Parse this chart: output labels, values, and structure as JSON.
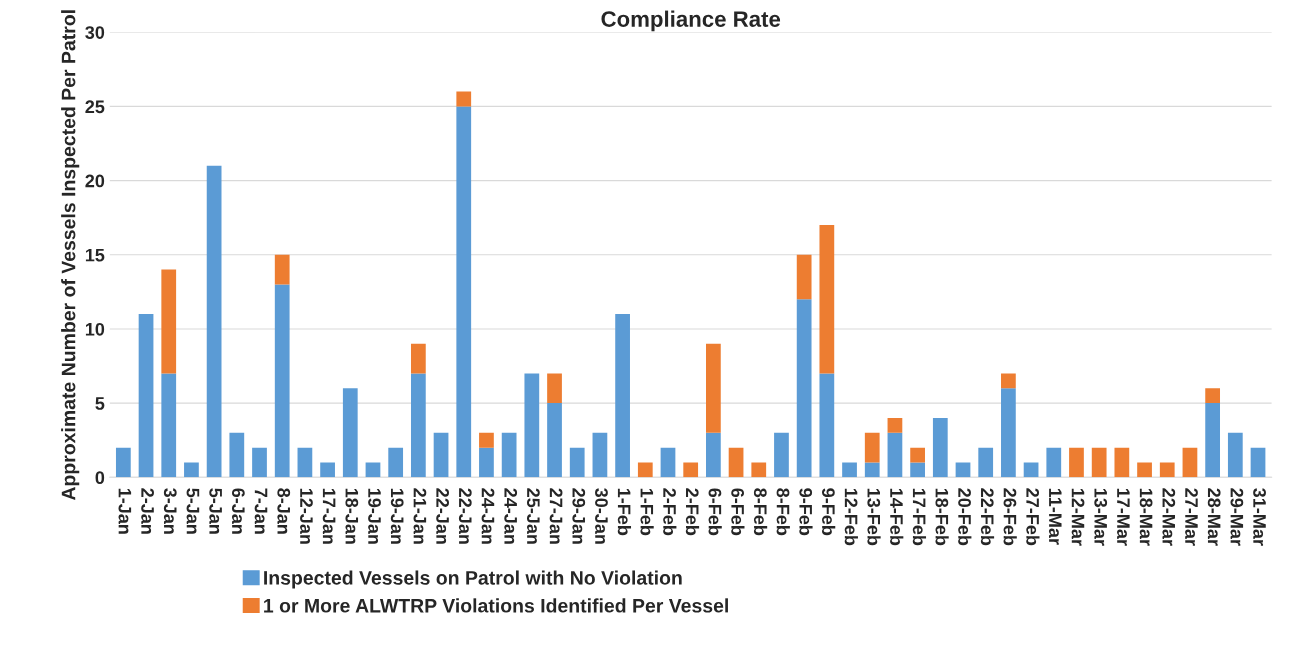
{
  "chart_data": {
    "type": "bar",
    "title": "Compliance Rate",
    "ylabel": "Approximate Number of Vessels Inspected Per Patrol",
    "stacked": true,
    "grid": "y",
    "legend": "bottom",
    "categories": [
      "1-Jan",
      "2-Jan",
      "3-Jan",
      "5-Jan",
      "5-Jan",
      "6-Jan",
      "7-Jan",
      "8-Jan",
      "12-Jan",
      "17-Jan",
      "18-Jan",
      "19-Jan",
      "19-Jan",
      "21-Jan",
      "22-Jan",
      "22-Jan",
      "24-Jan",
      "24-Jan",
      "25-Jan",
      "27-Jan",
      "29-Jan",
      "30-Jan",
      "1-Feb",
      "1-Feb",
      "2-Feb",
      "2-Feb",
      "6-Feb",
      "6-Feb",
      "8-Feb",
      "8-Feb",
      "9-Feb",
      "9-Feb",
      "12-Feb",
      "13-Feb",
      "14-Feb",
      "17-Feb",
      "18-Feb",
      "20-Feb",
      "22-Feb",
      "26-Feb",
      "27-Feb",
      "11-Mar",
      "12-Mar",
      "13-Mar",
      "17-Mar",
      "18-Mar",
      "22-Mar",
      "27-Mar",
      "28-Mar",
      "29-Mar",
      "31-Mar"
    ],
    "series": [
      {
        "name": "Inspected Vessels on Patrol with No Violation",
        "color": "#5b9bd5",
        "values": [
          2,
          11,
          7,
          1,
          21,
          3,
          2,
          13,
          2,
          1,
          6,
          1,
          2,
          7,
          3,
          25,
          2,
          3,
          7,
          5,
          2,
          3,
          11,
          0,
          2,
          0,
          3,
          0,
          0,
          3,
          12,
          7,
          1,
          1,
          3,
          1,
          4,
          1,
          2,
          6,
          1,
          2,
          0,
          0,
          0,
          0,
          0,
          0,
          5,
          3,
          2
        ]
      },
      {
        "name": "1 or More ALWTRP Violations Identified Per Vessel",
        "color": "#ed7d31",
        "values": [
          0,
          0,
          7,
          0,
          0,
          0,
          0,
          2,
          0,
          0,
          0,
          0,
          0,
          2,
          0,
          1,
          1,
          0,
          0,
          2,
          0,
          0,
          0,
          1,
          0,
          1,
          6,
          2,
          1,
          0,
          3,
          10,
          0,
          2,
          1,
          1,
          0,
          0,
          0,
          1,
          0,
          0,
          2,
          2,
          2,
          1,
          1,
          2,
          1,
          0,
          0
        ]
      }
    ],
    "ylim": [
      0,
      30
    ],
    "yticks": [
      0,
      5,
      10,
      15,
      20,
      25,
      30
    ]
  }
}
